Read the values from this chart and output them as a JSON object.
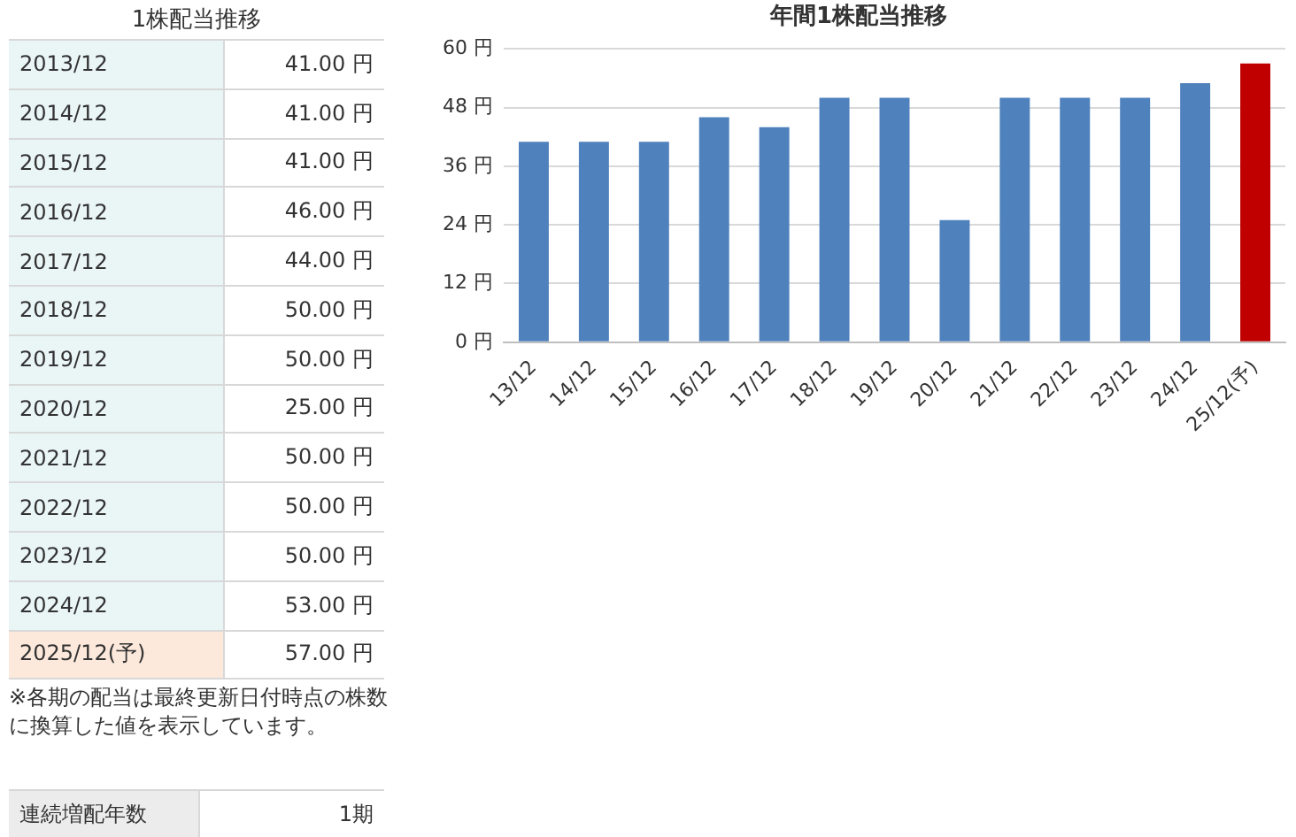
{
  "chart_data": [
    {
      "type": "other",
      "title": "1株配当推移",
      "categories": [
        "2013/12",
        "2014/12",
        "2015/12",
        "2016/12",
        "2017/12",
        "2018/12",
        "2019/12",
        "2020/12",
        "2021/12",
        "2022/12",
        "2023/12",
        "2024/12",
        "2025/12(予)"
      ],
      "value_labels": [
        "41.00 円",
        "41.00 円",
        "41.00 円",
        "46.00 円",
        "44.00 円",
        "50.00 円",
        "50.00 円",
        "25.00 円",
        "50.00 円",
        "50.00 円",
        "50.00 円",
        "53.00 円",
        "57.00 円"
      ],
      "colors": [
        "#eaf5f6",
        "#eaf5f6",
        "#eaf5f6",
        "#eaf5f6",
        "#eaf5f6",
        "#eaf5f6",
        "#eaf5f6",
        "#eaf5f6",
        "#eaf5f6",
        "#eaf5f6",
        "#eaf5f6",
        "#eaf5f6",
        "#fde9dc"
      ],
      "annotations": [
        "※各期の配当は最終更新日付時点の株数に換算した値を表示しています。",
        "連続増配年数",
        "1期"
      ]
    },
    {
      "type": "bar",
      "title": "年間1株配当推移",
      "categories": [
        "13/12",
        "14/12",
        "15/12",
        "16/12",
        "17/12",
        "18/12",
        "19/12",
        "20/12",
        "21/12",
        "22/12",
        "23/12",
        "24/12",
        "25/12(予)"
      ],
      "values": [
        41,
        41,
        41,
        46,
        44,
        50,
        50,
        25,
        50,
        50,
        50,
        53,
        57
      ],
      "colors": [
        "#4f81bd",
        "#4f81bd",
        "#4f81bd",
        "#4f81bd",
        "#4f81bd",
        "#4f81bd",
        "#4f81bd",
        "#4f81bd",
        "#4f81bd",
        "#4f81bd",
        "#4f81bd",
        "#4f81bd",
        "#c00000"
      ],
      "ylim": [
        0,
        60
      ],
      "yticks": [
        {
          "value": 0,
          "label": "0 円"
        },
        {
          "value": 12,
          "label": "12 円"
        },
        {
          "value": 24,
          "label": "24 円"
        },
        {
          "value": 36,
          "label": "36 円"
        },
        {
          "value": 48,
          "label": "48 円"
        },
        {
          "value": 60,
          "label": "60 円"
        }
      ],
      "grid": "y",
      "legend": false
    }
  ]
}
